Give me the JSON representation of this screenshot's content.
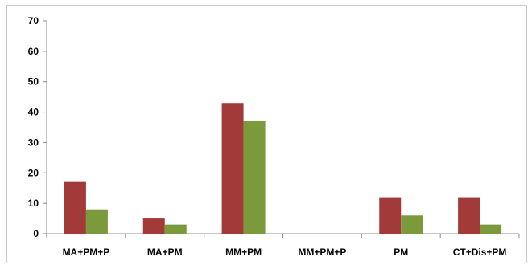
{
  "chart_data": {
    "type": "bar",
    "title": "",
    "xlabel": "",
    "ylabel": "",
    "categories": [
      "MA+PM+P",
      "MA+PM",
      "MM+PM",
      "MM+PM+P",
      "PM",
      "CT+Dis+PM"
    ],
    "series": [
      {
        "values": [
          17,
          5,
          43,
          0,
          12,
          12
        ],
        "color": "#a33a3a"
      },
      {
        "values": [
          8,
          3,
          37,
          0,
          6,
          3
        ],
        "color": "#7a9a3c"
      }
    ],
    "ylim": [
      0,
      70
    ],
    "yticks": [
      0,
      10,
      20,
      30,
      40,
      50,
      60,
      70
    ],
    "grid": false,
    "legend": "none"
  }
}
